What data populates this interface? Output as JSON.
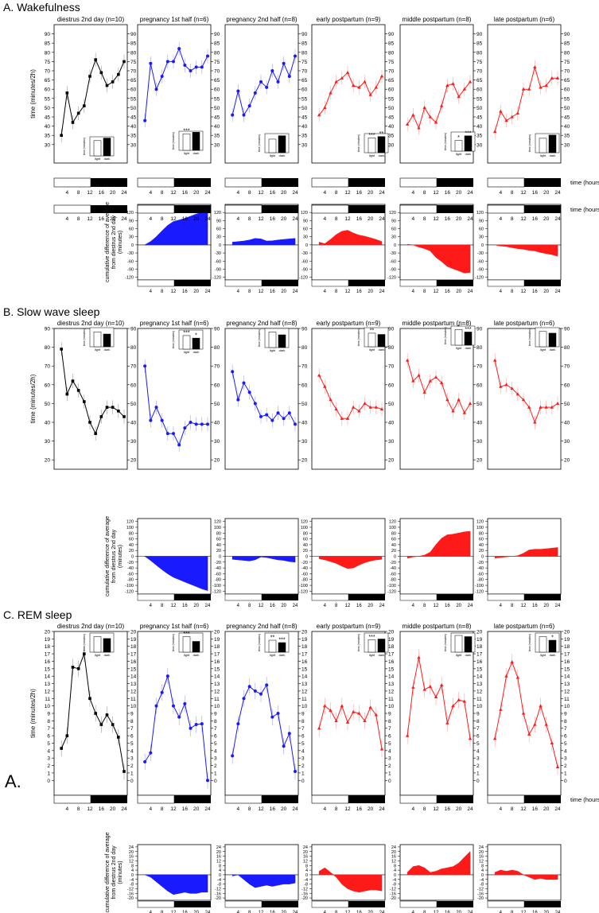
{
  "figure": {
    "section_titles": [
      "A. Wakefulness",
      "B. Slow wave sleep",
      "C. REM sleep"
    ],
    "stray_label": "A.",
    "main_ylabel": "time (minutes/2h)",
    "cum_ylabel_lines": [
      "cumulative difference of average",
      "from diestrus 2nd day",
      "(minutes)"
    ],
    "xlabel": "time (hours)",
    "inset_ylabel": "time (minutes)",
    "inset_categories": [
      "light",
      "dark"
    ],
    "panel_titles": [
      "diestrus 2nd day (n=10)",
      "pregnancy 1st half (n=6)",
      "pregnancy 2nd half (n=8)",
      "early postpartum (n=9)",
      "middle postpartum (n=8)",
      "late postpartum (n=6)"
    ],
    "colors": {
      "control": "#000000",
      "pregnancy": "#1a1aff",
      "postpartum": "#ff1a1a"
    }
  },
  "chart_data": [
    {
      "type": "line",
      "section": "Wakefulness",
      "x": [
        2,
        4,
        6,
        8,
        10,
        12,
        14,
        16,
        18,
        20,
        22,
        24
      ],
      "xticks": [
        4,
        8,
        12,
        16,
        20,
        24
      ],
      "ylim": [
        20,
        95
      ],
      "yticks": [
        30,
        35,
        40,
        45,
        50,
        55,
        60,
        65,
        70,
        75,
        80,
        85,
        90
      ],
      "ylabel": "time (minutes/2h)",
      "xlabel": "time (hours)",
      "series": [
        {
          "name": "diestrus 2nd day (n=10)",
          "values": [
            35,
            58,
            42,
            47,
            51,
            67,
            76,
            69,
            62,
            64,
            68,
            75
          ],
          "inset": [
            360,
            420
          ],
          "inset_stars": [
            "",
            ""
          ]
        },
        {
          "name": "pregnancy 1st half (n=6)",
          "values": [
            43,
            74,
            60,
            67,
            75,
            75,
            82,
            73,
            70,
            72,
            72,
            78
          ],
          "inset": [
            390,
            425
          ],
          "inset_stars": [
            "***",
            ""
          ]
        },
        {
          "name": "pregnancy 2nd half (n=8)",
          "values": [
            46,
            59,
            46,
            51,
            58,
            64,
            61,
            70,
            64,
            74,
            67,
            78
          ],
          "inset": [
            320,
            400
          ],
          "inset_stars": [
            "",
            ""
          ]
        },
        {
          "name": "early postpartum (n=9)",
          "values": [
            46,
            50,
            58,
            64,
            66,
            69,
            62,
            61,
            64,
            57,
            61,
            67
          ],
          "inset": [
            350,
            380
          ],
          "inset_stars": [
            "***",
            "**"
          ]
        },
        {
          "name": "middle postpartum (n=8)",
          "values": [
            41,
            46,
            39,
            50,
            45,
            42,
            51,
            62,
            63,
            56,
            60,
            64
          ],
          "inset": [
            250,
            360
          ],
          "inset_stars": [
            "*",
            "***"
          ]
        },
        {
          "name": "late postpartum (n=6)",
          "values": [
            37,
            48,
            43,
            45,
            47,
            60,
            60,
            72,
            61,
            62,
            66,
            66
          ],
          "inset": [
            340,
            415
          ],
          "inset_stars": [
            "",
            ""
          ]
        }
      ],
      "inset_ylim": [
        0,
        450
      ],
      "cumulative": {
        "ylim": [
          -130,
          150
        ],
        "yticks": [
          -120,
          -90,
          -60,
          -30,
          0,
          30,
          60,
          90,
          120
        ],
        "series": [
          {
            "name": "pregnancy 1st half (n=6)",
            "values": [
              0,
              12,
              30,
              52,
              72,
              86,
              92,
              98,
              106,
              114,
              120,
              123
            ]
          },
          {
            "name": "pregnancy 2nd half (n=8)",
            "values": [
              10,
              12,
              14,
              18,
              24,
              22,
              14,
              15,
              18,
              20,
              22,
              24
            ]
          },
          {
            "name": "early postpartum (n=9)",
            "values": [
              10,
              4,
              20,
              38,
              50,
              54,
              44,
              36,
              32,
              26,
              20,
              12
            ]
          },
          {
            "name": "middle postpartum (n=8)",
            "values": [
              2,
              0,
              -8,
              -14,
              -22,
              -46,
              -62,
              -80,
              -88,
              -96,
              -104,
              -102
            ]
          },
          {
            "name": "late postpartum (n=6)",
            "values": [
              0,
              -4,
              -6,
              -10,
              -14,
              -16,
              -20,
              -22,
              -28,
              -32,
              -36,
              -42
            ]
          }
        ]
      }
    },
    {
      "type": "line",
      "section": "Slow wave sleep",
      "x": [
        2,
        4,
        6,
        8,
        10,
        12,
        14,
        16,
        18,
        20,
        22,
        24
      ],
      "xticks": [
        4,
        8,
        12,
        16,
        20,
        24
      ],
      "ylim": [
        15,
        90
      ],
      "yticks": [
        20,
        30,
        40,
        50,
        60,
        70,
        80,
        90
      ],
      "ylabel": "time (minutes/2h)",
      "xlabel": "time (hours)",
      "series": [
        {
          "name": "diestrus 2nd day (n=10)",
          "values": [
            79,
            55,
            62,
            57,
            51,
            40,
            34,
            43,
            48,
            48,
            46,
            43
          ],
          "inset": [
            350,
            300
          ],
          "inset_stars": [
            "",
            ""
          ]
        },
        {
          "name": "pregnancy 1st half (n=6)",
          "values": [
            70,
            41,
            48,
            41,
            34,
            34,
            28,
            37,
            40,
            39,
            39,
            39
          ],
          "inset": [
            320,
            260
          ],
          "inset_stars": [
            "***",
            "*"
          ]
        },
        {
          "name": "pregnancy 2nd half (n=8)",
          "values": [
            67,
            52,
            61,
            56,
            50,
            43,
            44,
            41,
            45,
            42,
            45,
            39
          ],
          "inset": [
            370,
            300
          ],
          "inset_stars": [
            "",
            ""
          ]
        },
        {
          "name": "early postpartum (n=9)",
          "values": [
            65,
            59,
            52,
            47,
            42,
            42,
            48,
            46,
            50,
            48,
            48,
            47
          ],
          "inset": [
            320,
            290
          ],
          "inset_stars": [
            "**",
            ""
          ]
        },
        {
          "name": "middle postpartum (n=8)",
          "values": [
            73,
            62,
            65,
            56,
            62,
            64,
            61,
            52,
            46,
            52,
            45,
            50
          ],
          "inset": [
            370,
            310
          ],
          "inset_stars": [
            "*",
            "***"
          ]
        },
        {
          "name": "late postpartum (n=6)",
          "values": [
            73,
            59,
            60,
            58,
            55,
            52,
            48,
            40,
            48,
            48,
            48,
            50
          ],
          "inset": [
            360,
            320
          ],
          "inset_stars": [
            "",
            ""
          ]
        }
      ],
      "inset_ylim": [
        0,
        450
      ],
      "cumulative": {
        "ylim": [
          -130,
          130
        ],
        "yticks": [
          -120,
          -100,
          -80,
          -60,
          -40,
          -20,
          0,
          20,
          40,
          60,
          80,
          100,
          120
        ],
        "series": [
          {
            "name": "pregnancy 1st half (n=6)",
            "values": [
              0,
              -14,
              -30,
              -46,
              -60,
              -72,
              -80,
              -88,
              -96,
              -104,
              -112,
              -118
            ]
          },
          {
            "name": "pregnancy 2nd half (n=8)",
            "values": [
              -10,
              -12,
              -14,
              -16,
              -12,
              -2,
              -4,
              -8,
              -12,
              -14,
              -18,
              -20
            ]
          },
          {
            "name": "early postpartum (n=9)",
            "values": [
              -8,
              -12,
              -18,
              -24,
              -34,
              -42,
              -40,
              -30,
              -22,
              -16,
              -12,
              -10
            ]
          },
          {
            "name": "middle postpartum (n=8)",
            "values": [
              -6,
              -2,
              0,
              4,
              14,
              40,
              62,
              74,
              76,
              80,
              84,
              86
            ]
          },
          {
            "name": "late postpartum (n=6)",
            "values": [
              -6,
              -4,
              -2,
              0,
              2,
              10,
              22,
              24,
              24,
              26,
              28,
              30
            ]
          }
        ]
      }
    },
    {
      "type": "line",
      "section": "REM sleep",
      "x": [
        2,
        4,
        6,
        8,
        10,
        12,
        14,
        16,
        18,
        20,
        22,
        24
      ],
      "xticks": [
        4,
        8,
        12,
        16,
        20,
        24
      ],
      "ylim": [
        -2,
        20
      ],
      "yticks": [
        0,
        1,
        2,
        3,
        4,
        5,
        6,
        7,
        8,
        9,
        10,
        11,
        12,
        13,
        14,
        15,
        16,
        17,
        18,
        19,
        20
      ],
      "ylabel": "time (minutes/2h)",
      "xlabel": "time (hours)",
      "series": [
        {
          "name": "diestrus 2nd day (n=10)",
          "values": [
            4.3,
            6.0,
            15.2,
            15.0,
            17.0,
            11.0,
            9.0,
            7.5,
            8.8,
            7.5,
            5.8,
            1.2
          ],
          "inset": [
            65,
            57
          ],
          "inset_stars": [
            "",
            ""
          ]
        },
        {
          "name": "pregnancy 1st half (n=6)",
          "values": [
            2.5,
            3.7,
            10.0,
            11.8,
            14.0,
            10.0,
            8.5,
            10.3,
            7.0,
            7.5,
            7.6,
            0.0
          ],
          "inset": [
            65,
            45
          ],
          "inset_stars": [
            "***",
            ""
          ]
        },
        {
          "name": "pregnancy 2nd half (n=8)",
          "values": [
            3.3,
            7.6,
            11.0,
            12.6,
            12.0,
            11.6,
            12.8,
            8.5,
            9.0,
            4.6,
            6.3,
            1.2
          ],
          "inset": [
            50,
            40
          ],
          "inset_stars": [
            "**",
            "***"
          ]
        },
        {
          "name": "early postpartum (n=9)",
          "values": [
            7.0,
            10.0,
            9.4,
            8.0,
            10.0,
            7.8,
            9.2,
            9.0,
            8.0,
            9.8,
            8.8,
            4.2
          ],
          "inset": [
            52,
            55
          ],
          "inset_stars": [
            "***",
            ""
          ]
        },
        {
          "name": "middle postpartum (n=8)",
          "values": [
            6.0,
            12.5,
            16.5,
            12.2,
            12.6,
            11.2,
            12.8,
            7.7,
            10.0,
            10.8,
            10.6,
            5.6
          ],
          "inset": [
            70,
            65
          ],
          "inset_stars": [
            "",
            ""
          ]
        },
        {
          "name": "late postpartum (n=6)",
          "values": [
            5.6,
            9.5,
            14.0,
            15.9,
            13.8,
            9.0,
            6.2,
            7.5,
            10.0,
            7.5,
            5.0,
            1.8
          ],
          "inset": [
            65,
            50
          ],
          "inset_stars": [
            "",
            "*"
          ]
        }
      ],
      "inset_ylim": [
        0,
        80
      ],
      "cumulative": {
        "ylim": [
          -22,
          26
        ],
        "yticks": [
          -20,
          -18,
          -16,
          -14,
          -12,
          -10,
          -8,
          -6,
          -4,
          -2,
          0,
          2,
          4,
          6,
          8,
          10,
          12,
          14,
          16,
          18,
          20,
          22,
          24
        ],
        "series": [
          {
            "name": "pregnancy 1st half (n=6)",
            "values": [
              0,
              -2,
              -6,
              -10,
              -14,
              -17,
              -16,
              -15,
              -16,
              -16,
              -15,
              -15
            ]
          },
          {
            "name": "pregnancy 2nd half (n=8)",
            "values": [
              -1,
              0,
              -4,
              -8,
              -11,
              -10,
              -9,
              -10,
              -9,
              -8,
              -8,
              -7
            ]
          },
          {
            "name": "early postpartum (n=9)",
            "values": [
              3,
              6,
              2,
              -2,
              -8,
              -12,
              -14,
              -15,
              -14,
              -13,
              -13,
              -14
            ]
          },
          {
            "name": "middle postpartum (n=8)",
            "values": [
              2,
              7,
              8,
              6,
              2,
              3,
              5,
              6,
              7,
              10,
              15,
              20
            ]
          },
          {
            "name": "late postpartum (n=6)",
            "values": [
              2,
              4,
              3,
              4,
              3,
              0,
              -2,
              -4,
              -3,
              -4,
              -4,
              -4
            ]
          }
        ]
      }
    }
  ]
}
